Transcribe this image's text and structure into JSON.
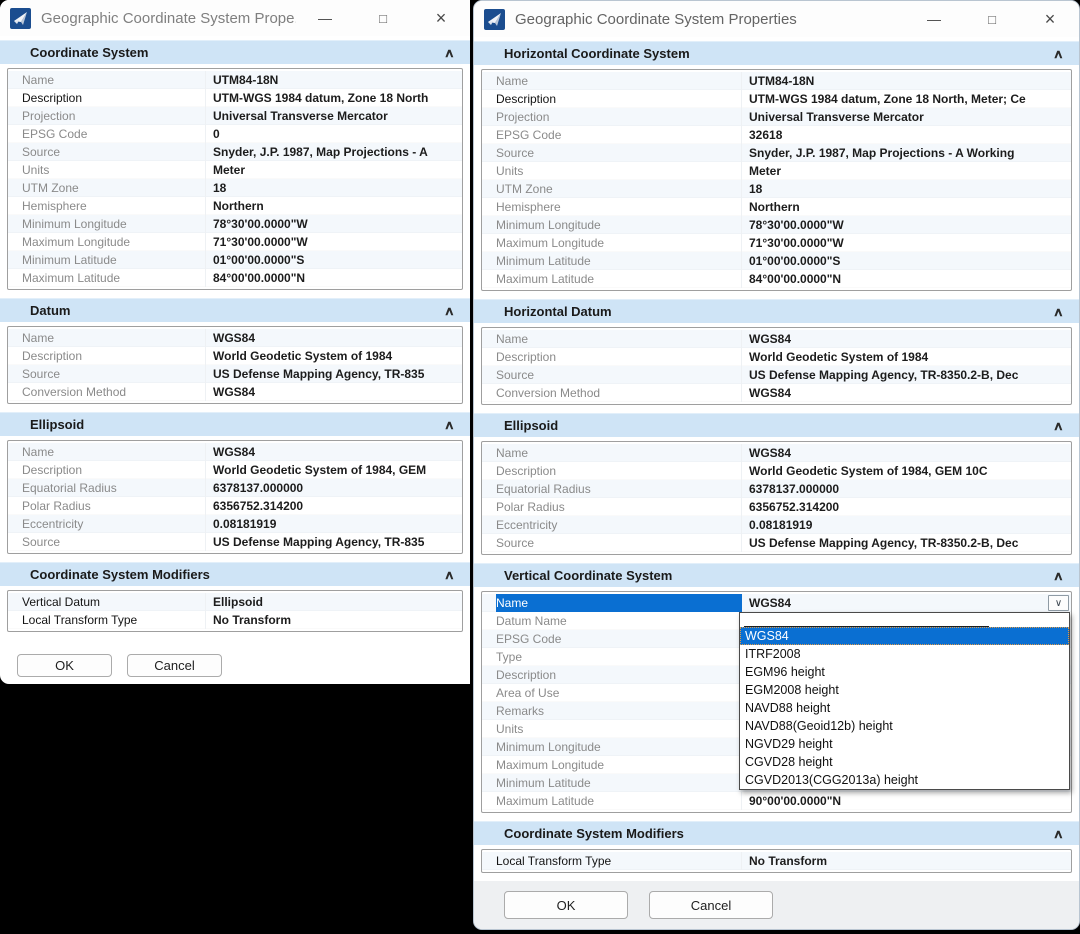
{
  "icons": {
    "chevron_up": "∧",
    "combo_down": "∨",
    "minimize": "—",
    "maximize": "□",
    "close": "×"
  },
  "colors": {
    "section_header_bg": "#cfe4f6",
    "selection_blue": "#0a6fd2",
    "desktop_bg": "#000000",
    "app_icon_blue": "#1b4d8f"
  },
  "left_window": {
    "title": "Geographic Coordinate System Prope...",
    "sections": [
      {
        "title": "Coordinate System",
        "rows": [
          {
            "label": "Name",
            "value": "UTM84-18N"
          },
          {
            "label": "Description",
            "value": "UTM-WGS 1984 datum, Zone 18 North",
            "dark_label": true
          },
          {
            "label": "Projection",
            "value": "Universal Transverse Mercator"
          },
          {
            "label": "EPSG Code",
            "value": "0"
          },
          {
            "label": "Source",
            "value": "Snyder, J.P. 1987, Map Projections - A"
          },
          {
            "label": "Units",
            "value": "Meter"
          },
          {
            "label": "UTM Zone",
            "value": "18"
          },
          {
            "label": "Hemisphere",
            "value": "Northern"
          },
          {
            "label": "Minimum Longitude",
            "value": "78°30'00.0000\"W"
          },
          {
            "label": "Maximum Longitude",
            "value": "71°30'00.0000\"W"
          },
          {
            "label": "Minimum Latitude",
            "value": "01°00'00.0000\"S"
          },
          {
            "label": "Maximum Latitude",
            "value": "84°00'00.0000\"N"
          }
        ]
      },
      {
        "title": "Datum",
        "rows": [
          {
            "label": "Name",
            "value": "WGS84"
          },
          {
            "label": "Description",
            "value": "World Geodetic System of 1984"
          },
          {
            "label": "Source",
            "value": "US Defense Mapping Agency, TR-835"
          },
          {
            "label": "Conversion Method",
            "value": "WGS84"
          }
        ]
      },
      {
        "title": "Ellipsoid",
        "rows": [
          {
            "label": "Name",
            "value": "WGS84"
          },
          {
            "label": "Description",
            "value": "World Geodetic System of 1984, GEM"
          },
          {
            "label": "Equatorial Radius",
            "value": "6378137.000000"
          },
          {
            "label": "Polar Radius",
            "value": "6356752.314200"
          },
          {
            "label": "Eccentricity",
            "value": "0.08181919"
          },
          {
            "label": "Source",
            "value": "US Defense Mapping Agency, TR-835"
          }
        ]
      },
      {
        "title": "Coordinate System Modifiers",
        "rows": [
          {
            "label": "Vertical Datum",
            "value": "Ellipsoid",
            "dark_label": true
          },
          {
            "label": "Local Transform Type",
            "value": "No Transform",
            "dark_label": true
          }
        ]
      }
    ],
    "buttons": {
      "ok": "OK",
      "cancel": "Cancel"
    }
  },
  "right_window": {
    "title": "Geographic Coordinate System Properties",
    "sections": [
      {
        "title": "Horizontal Coordinate System",
        "rows": [
          {
            "label": "Name",
            "value": "UTM84-18N"
          },
          {
            "label": "Description",
            "value": "UTM-WGS 1984 datum, Zone 18 North, Meter; Ce",
            "dark_label": true
          },
          {
            "label": "Projection",
            "value": "Universal Transverse Mercator"
          },
          {
            "label": "EPSG Code",
            "value": "32618"
          },
          {
            "label": "Source",
            "value": "Snyder, J.P. 1987, Map Projections - A Working"
          },
          {
            "label": "Units",
            "value": "Meter"
          },
          {
            "label": "UTM Zone",
            "value": "18"
          },
          {
            "label": "Hemisphere",
            "value": "Northern"
          },
          {
            "label": "Minimum Longitude",
            "value": "78°30'00.0000\"W"
          },
          {
            "label": "Maximum Longitude",
            "value": "71°30'00.0000\"W"
          },
          {
            "label": "Minimum Latitude",
            "value": "01°00'00.0000\"S"
          },
          {
            "label": "Maximum Latitude",
            "value": "84°00'00.0000\"N"
          }
        ]
      },
      {
        "title": "Horizontal Datum",
        "rows": [
          {
            "label": "Name",
            "value": "WGS84"
          },
          {
            "label": "Description",
            "value": "World Geodetic System of 1984"
          },
          {
            "label": "Source",
            "value": "US Defense Mapping Agency, TR-8350.2-B, Dec"
          },
          {
            "label": "Conversion Method",
            "value": "WGS84"
          }
        ]
      },
      {
        "title": "Ellipsoid",
        "rows": [
          {
            "label": "Name",
            "value": "WGS84"
          },
          {
            "label": "Description",
            "value": "World Geodetic System of 1984, GEM 10C"
          },
          {
            "label": "Equatorial Radius",
            "value": "6378137.000000"
          },
          {
            "label": "Polar Radius",
            "value": "6356752.314200"
          },
          {
            "label": "Eccentricity",
            "value": "0.08181919"
          },
          {
            "label": "Source",
            "value": "US Defense Mapping Agency, TR-8350.2-B, Dec"
          }
        ]
      },
      {
        "title": "Vertical Coordinate System",
        "rows": [
          {
            "label": "Name",
            "value": "WGS84",
            "selected": true,
            "combo": true
          },
          {
            "label": "Datum Name",
            "value": ""
          },
          {
            "label": "EPSG Code",
            "value": ""
          },
          {
            "label": "Type",
            "value": ""
          },
          {
            "label": "Description",
            "value": ""
          },
          {
            "label": "Area of Use",
            "value": ""
          },
          {
            "label": "Remarks",
            "value": ""
          },
          {
            "label": "Units",
            "value": ""
          },
          {
            "label": "Minimum Longitude",
            "value": ""
          },
          {
            "label": "Maximum Longitude",
            "value": ""
          },
          {
            "label": "Minimum Latitude",
            "value": ""
          },
          {
            "label": "Maximum Latitude",
            "value": "90°00'00.0000\"N"
          }
        ]
      },
      {
        "title": "Coordinate System Modifiers",
        "rows": [
          {
            "label": "Local Transform Type",
            "value": "No Transform",
            "dark_label": true
          }
        ]
      }
    ],
    "dropdown": {
      "selected_index": 0,
      "items": [
        "WGS84",
        "ITRF2008",
        "EGM96 height",
        "EGM2008 height",
        "NAVD88 height",
        "NAVD88(Geoid12b) height",
        "NGVD29 height",
        "CGVD28 height",
        "CGVD2013(CGG2013a) height"
      ]
    },
    "buttons": {
      "ok": "OK",
      "cancel": "Cancel"
    }
  }
}
